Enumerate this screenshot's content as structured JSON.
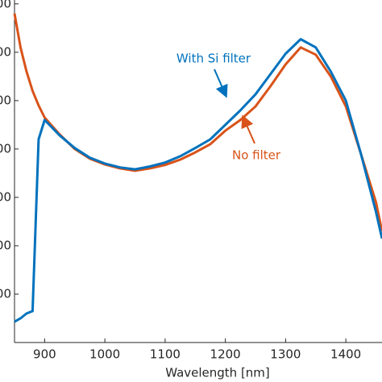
{
  "chart_data": {
    "type": "line",
    "xlabel": "Wavelength [nm]",
    "x": [
      850,
      860,
      870,
      880,
      890,
      900,
      925,
      950,
      975,
      1000,
      1025,
      1050,
      1075,
      1100,
      1125,
      1150,
      1175,
      1200,
      1225,
      1250,
      1275,
      1300,
      1325,
      1350,
      1375,
      1400,
      1425,
      1450,
      1460
    ],
    "series": [
      {
        "name": "No filter",
        "color": "#d95319",
        "values": [
          6.8,
          6.1,
          5.6,
          5.2,
          4.9,
          4.65,
          4.3,
          4.0,
          3.8,
          3.68,
          3.6,
          3.55,
          3.6,
          3.67,
          3.78,
          3.93,
          4.1,
          4.38,
          4.6,
          4.88,
          5.3,
          5.75,
          6.1,
          5.95,
          5.5,
          4.88,
          3.9,
          2.9,
          2.3
        ]
      },
      {
        "name": "With Si filter",
        "color": "#0072bd",
        "values": [
          0.43,
          0.5,
          0.6,
          0.65,
          4.2,
          4.6,
          4.28,
          4.02,
          3.82,
          3.7,
          3.62,
          3.58,
          3.64,
          3.72,
          3.85,
          4.02,
          4.2,
          4.5,
          4.8,
          5.13,
          5.55,
          5.97,
          6.27,
          6.1,
          5.6,
          5.0,
          3.9,
          2.7,
          2.15
        ]
      }
    ],
    "xlim": [
      850,
      1460
    ],
    "xticks": [
      900,
      1000,
      1100,
      1200,
      1300,
      1400
    ],
    "ylim": [
      0,
      7.08
    ],
    "yticks": [
      {
        "value": 1,
        "label": "00"
      },
      {
        "value": 2,
        "label": "00"
      },
      {
        "value": 3,
        "label": "00"
      },
      {
        "value": 4,
        "label": "00"
      },
      {
        "value": 5,
        "label": "00"
      },
      {
        "value": 6,
        "label": "00"
      },
      {
        "value": 7,
        "label": "00"
      }
    ]
  }
}
